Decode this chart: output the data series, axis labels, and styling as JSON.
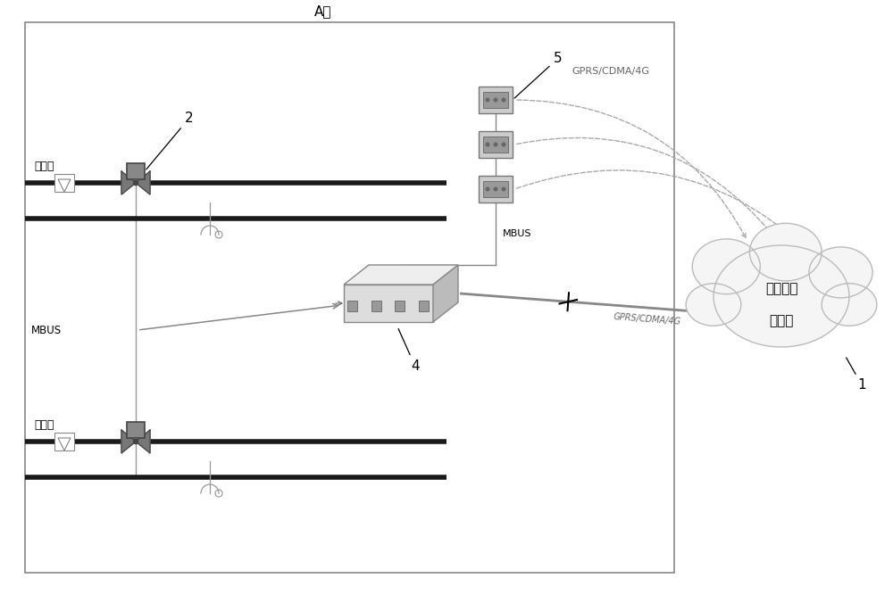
{
  "bg_color": "#ffffff",
  "border_color": "#888888",
  "pipe_color": "#1a1a1a",
  "line_color": "#aaaaaa",
  "gray_line": "#999999",
  "title": "A楼",
  "label_1": "1",
  "label_2": "2",
  "label_4": "4",
  "label_5": "5",
  "unit1_label": "一单元",
  "unit2_label": "二单元",
  "mbus_label": "MBUS",
  "mbus_label2": "MBUS",
  "gprs_label": "GPRS/CDMA/4G",
  "gprs_label2": "GPRS/CDMA/4G",
  "cloud_line1": "能耗监控",
  "cloud_line2": "云平台",
  "cloud_color": "#f5f5f5",
  "cloud_border": "#bbbbbb",
  "dashed_color": "#aaaaaa",
  "valve_color": "#777777",
  "sensor_color": "#666666",
  "device_face": "#dddddd",
  "device_top": "#eeeeee",
  "device_right": "#bbbbbb",
  "meter_face": "#bbbbbb",
  "meter_dark": "#888888"
}
